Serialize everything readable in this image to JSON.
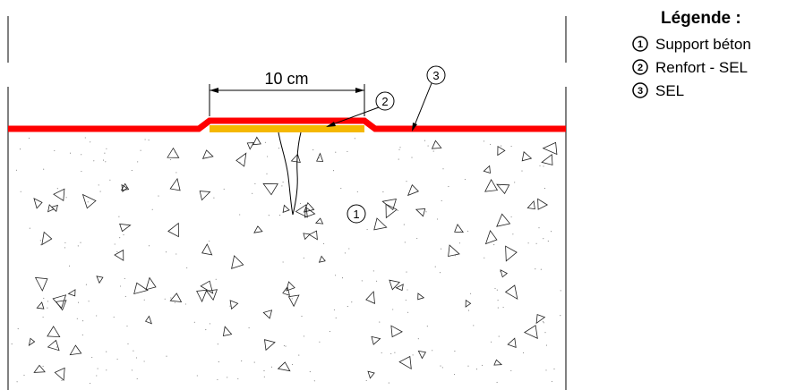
{
  "diagram": {
    "dimension": {
      "label": "10 cm"
    },
    "callouts": [
      {
        "number": "1"
      },
      {
        "number": "2"
      },
      {
        "number": "3"
      }
    ],
    "colors": {
      "membrane": "#ff0000",
      "reinforcement": "#f5b800",
      "outline": "#000000",
      "background": "#ffffff"
    }
  },
  "legend": {
    "title": "Légende :",
    "items": [
      {
        "number": "1",
        "label": "Support béton"
      },
      {
        "number": "2",
        "label": "Renfort - SEL"
      },
      {
        "number": "3",
        "label": "SEL"
      }
    ]
  }
}
